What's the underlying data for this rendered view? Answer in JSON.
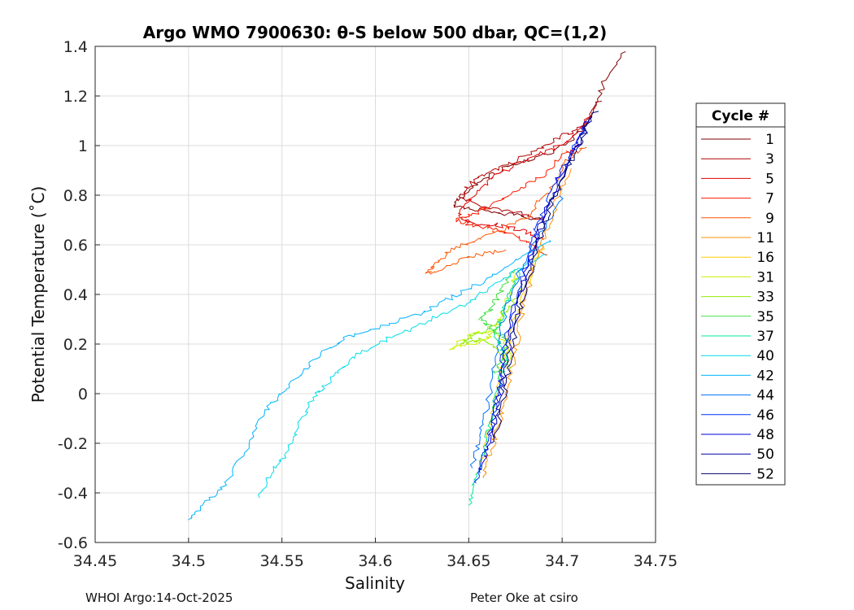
{
  "chart_data": {
    "type": "line",
    "title": "Argo WMO 7900630: θ-S below 500 dbar,  QC=(1,2)",
    "xlabel": "Salinity",
    "ylabel": "Potential Temperature (˚C)",
    "xlim": [
      34.45,
      34.75
    ],
    "ylim": [
      -0.6,
      1.4
    ],
    "xticks": [
      "34.45",
      "34.5",
      "34.55",
      "34.6",
      "34.65",
      "34.7",
      "34.75"
    ],
    "yticks": [
      "-0.6",
      "-0.4",
      "-0.2",
      "0",
      "0.2",
      "0.4",
      "0.6",
      "0.8",
      "1",
      "1.2",
      "1.4"
    ],
    "xtick_values": [
      34.45,
      34.5,
      34.55,
      34.6,
      34.65,
      34.7,
      34.75
    ],
    "ytick_values": [
      -0.6,
      -0.4,
      -0.2,
      0,
      0.2,
      0.4,
      0.6,
      0.8,
      1.0,
      1.2,
      1.4
    ],
    "grid": true,
    "legend": {
      "title": "Cycle #",
      "placement": "right, outside"
    },
    "series": [
      {
        "name": "1",
        "color": "#800000",
        "points": [
          [
            34.734,
            1.38
          ],
          [
            34.722,
            1.25
          ],
          [
            34.715,
            1.1
          ],
          [
            34.705,
            1.02
          ],
          [
            34.69,
            0.96
          ],
          [
            34.672,
            0.92
          ],
          [
            34.658,
            0.86
          ],
          [
            34.648,
            0.8
          ],
          [
            34.642,
            0.76
          ],
          [
            34.656,
            0.74
          ],
          [
            34.675,
            0.72
          ],
          [
            34.69,
            0.7
          ]
        ]
      },
      {
        "name": "3",
        "color": "#b20000",
        "points": [
          [
            34.72,
            1.18
          ],
          [
            34.712,
            1.08
          ],
          [
            34.7,
            1.04
          ],
          [
            34.686,
            0.98
          ],
          [
            34.67,
            0.92
          ],
          [
            34.658,
            0.88
          ],
          [
            34.65,
            0.84
          ],
          [
            34.646,
            0.79
          ],
          [
            34.66,
            0.75
          ],
          [
            34.676,
            0.73
          ],
          [
            34.69,
            0.7
          ]
        ]
      },
      {
        "name": "5",
        "color": "#e00000",
        "points": [
          [
            34.714,
            1.12
          ],
          [
            34.706,
            1.03
          ],
          [
            34.694,
            0.98
          ],
          [
            34.68,
            0.94
          ],
          [
            34.664,
            0.88
          ],
          [
            34.652,
            0.8
          ],
          [
            34.645,
            0.72
          ],
          [
            34.65,
            0.69
          ],
          [
            34.664,
            0.68
          ],
          [
            34.678,
            0.66
          ],
          [
            34.69,
            0.62
          ]
        ]
      },
      {
        "name": "7",
        "color": "#ff1a00",
        "points": [
          [
            34.71,
            1.0
          ],
          [
            34.7,
            0.96
          ],
          [
            34.69,
            0.88
          ],
          [
            34.676,
            0.82
          ],
          [
            34.662,
            0.76
          ],
          [
            34.652,
            0.72
          ],
          [
            34.644,
            0.7
          ],
          [
            34.652,
            0.68
          ],
          [
            34.666,
            0.66
          ],
          [
            34.68,
            0.62
          ],
          [
            34.692,
            0.56
          ]
        ]
      },
      {
        "name": "9",
        "color": "#ff5500",
        "points": [
          [
            34.712,
            1.0
          ],
          [
            34.703,
            0.94
          ],
          [
            34.693,
            0.82
          ],
          [
            34.682,
            0.72
          ],
          [
            34.668,
            0.66
          ],
          [
            34.654,
            0.62
          ],
          [
            34.64,
            0.58
          ],
          [
            34.632,
            0.52
          ],
          [
            34.628,
            0.48
          ],
          [
            34.64,
            0.52
          ],
          [
            34.655,
            0.56
          ],
          [
            34.67,
            0.58
          ]
        ]
      },
      {
        "name": "11",
        "color": "#ff9000",
        "points": [
          [
            34.704,
            0.9
          ],
          [
            34.698,
            0.8
          ],
          [
            34.692,
            0.66
          ],
          [
            34.686,
            0.52
          ],
          [
            34.68,
            0.38
          ],
          [
            34.676,
            0.22
          ],
          [
            34.672,
            0.06
          ],
          [
            34.668,
            -0.08
          ],
          [
            34.664,
            -0.18
          ],
          [
            34.66,
            -0.28
          ],
          [
            34.658,
            -0.34
          ]
        ]
      },
      {
        "name": "16",
        "color": "#ffcc00",
        "points": [
          [
            34.69,
            0.6
          ],
          [
            34.684,
            0.5
          ],
          [
            34.678,
            0.38
          ],
          [
            34.672,
            0.24
          ],
          [
            34.668,
            0.1
          ],
          [
            34.664,
            -0.04
          ],
          [
            34.66,
            -0.16
          ],
          [
            34.657,
            -0.28
          ]
        ]
      },
      {
        "name": "31",
        "color": "#c8f000",
        "points": [
          [
            34.676,
            0.48
          ],
          [
            34.67,
            0.38
          ],
          [
            34.666,
            0.28
          ],
          [
            34.66,
            0.22
          ],
          [
            34.65,
            0.2
          ],
          [
            34.64,
            0.18
          ],
          [
            34.652,
            0.24
          ],
          [
            34.664,
            0.26
          ],
          [
            34.672,
            0.18
          ],
          [
            34.67,
            0.1
          ]
        ]
      },
      {
        "name": "33",
        "color": "#90ee00",
        "points": [
          [
            34.678,
            0.42
          ],
          [
            34.672,
            0.34
          ],
          [
            34.664,
            0.28
          ],
          [
            34.654,
            0.24
          ],
          [
            34.646,
            0.2
          ],
          [
            34.656,
            0.22
          ],
          [
            34.666,
            0.18
          ],
          [
            34.672,
            0.1
          ]
        ]
      },
      {
        "name": "35",
        "color": "#40e040",
        "points": [
          [
            34.674,
            0.5
          ],
          [
            34.668,
            0.42
          ],
          [
            34.662,
            0.34
          ],
          [
            34.656,
            0.3
          ],
          [
            34.662,
            0.26
          ],
          [
            34.67,
            0.22
          ],
          [
            34.668,
            0.14
          ],
          [
            34.664,
            0.08
          ]
        ]
      },
      {
        "name": "37",
        "color": "#00e890",
        "points": [
          [
            34.678,
            0.5
          ],
          [
            34.672,
            0.42
          ],
          [
            34.668,
            0.32
          ],
          [
            34.664,
            0.24
          ],
          [
            34.67,
            0.14
          ],
          [
            34.666,
            0.04
          ],
          [
            34.662,
            -0.1
          ],
          [
            34.658,
            -0.24
          ],
          [
            34.654,
            -0.34
          ],
          [
            34.65,
            -0.45
          ]
        ]
      },
      {
        "name": "40",
        "color": "#00dde8",
        "points": [
          [
            34.69,
            0.56
          ],
          [
            34.676,
            0.5
          ],
          [
            34.66,
            0.42
          ],
          [
            34.648,
            0.36
          ],
          [
            34.63,
            0.3
          ],
          [
            34.612,
            0.24
          ],
          [
            34.596,
            0.18
          ],
          [
            34.584,
            0.12
          ],
          [
            34.574,
            0.04
          ],
          [
            34.566,
            -0.02
          ],
          [
            34.56,
            -0.12
          ],
          [
            34.552,
            -0.24
          ],
          [
            34.546,
            -0.3
          ],
          [
            34.538,
            -0.42
          ]
        ]
      },
      {
        "name": "42",
        "color": "#00b4ff",
        "points": [
          [
            34.694,
            0.62
          ],
          [
            34.68,
            0.56
          ],
          [
            34.664,
            0.48
          ],
          [
            34.65,
            0.42
          ],
          [
            34.634,
            0.36
          ],
          [
            34.616,
            0.3
          ],
          [
            34.598,
            0.26
          ],
          [
            34.584,
            0.22
          ],
          [
            34.57,
            0.16
          ],
          [
            34.56,
            0.08
          ],
          [
            34.55,
            0.0
          ],
          [
            34.54,
            -0.08
          ],
          [
            34.53,
            -0.24
          ],
          [
            34.518,
            -0.38
          ],
          [
            34.506,
            -0.46
          ],
          [
            34.5,
            -0.51
          ]
        ]
      },
      {
        "name": "44",
        "color": "#0070ff",
        "points": [
          [
            34.7,
            0.8
          ],
          [
            34.692,
            0.68
          ],
          [
            34.682,
            0.58
          ],
          [
            34.674,
            0.44
          ],
          [
            34.668,
            0.28
          ],
          [
            34.664,
            0.12
          ],
          [
            34.66,
            -0.04
          ],
          [
            34.656,
            -0.18
          ],
          [
            34.652,
            -0.3
          ]
        ]
      },
      {
        "name": "46",
        "color": "#0030ff",
        "points": [
          [
            34.712,
            1.08
          ],
          [
            34.704,
            0.96
          ],
          [
            34.696,
            0.84
          ],
          [
            34.688,
            0.7
          ],
          [
            34.682,
            0.56
          ],
          [
            34.676,
            0.4
          ],
          [
            34.67,
            0.22
          ],
          [
            34.666,
            0.04
          ],
          [
            34.662,
            -0.12
          ],
          [
            34.658,
            -0.26
          ],
          [
            34.654,
            -0.36
          ]
        ]
      },
      {
        "name": "48",
        "color": "#0000e0",
        "points": [
          [
            34.714,
            1.1
          ],
          [
            34.706,
            0.98
          ],
          [
            34.698,
            0.86
          ],
          [
            34.69,
            0.72
          ],
          [
            34.684,
            0.58
          ],
          [
            34.678,
            0.42
          ],
          [
            34.672,
            0.26
          ],
          [
            34.668,
            0.08
          ],
          [
            34.664,
            -0.08
          ],
          [
            34.66,
            -0.22
          ],
          [
            34.656,
            -0.32
          ]
        ]
      },
      {
        "name": "50",
        "color": "#0000a8",
        "points": [
          [
            34.716,
            1.12
          ],
          [
            34.708,
            1.0
          ],
          [
            34.7,
            0.88
          ],
          [
            34.692,
            0.74
          ],
          [
            34.686,
            0.6
          ],
          [
            34.68,
            0.44
          ],
          [
            34.674,
            0.28
          ],
          [
            34.67,
            0.1
          ],
          [
            34.666,
            -0.06
          ],
          [
            34.662,
            -0.2
          ]
        ]
      },
      {
        "name": "52",
        "color": "#00006e",
        "points": [
          [
            34.718,
            1.14
          ],
          [
            34.71,
            1.02
          ],
          [
            34.702,
            0.9
          ],
          [
            34.694,
            0.76
          ],
          [
            34.688,
            0.62
          ],
          [
            34.682,
            0.46
          ],
          [
            34.676,
            0.3
          ],
          [
            34.672,
            0.12
          ],
          [
            34.668,
            -0.04
          ],
          [
            34.664,
            -0.18
          ]
        ]
      }
    ]
  },
  "footer": {
    "left": "WHOI Argo:14-Oct-2025",
    "right": "Peter Oke at csiro"
  }
}
